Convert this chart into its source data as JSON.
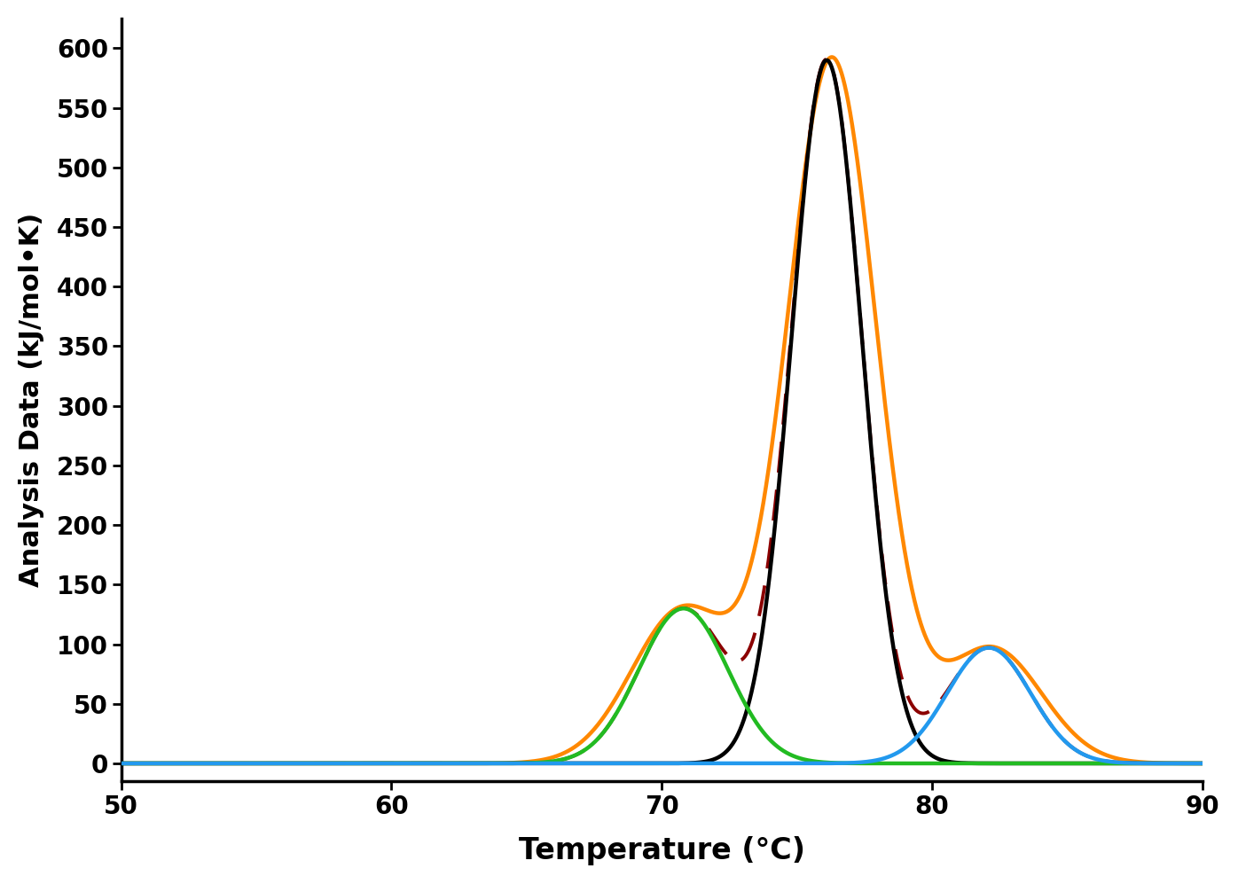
{
  "xlim": [
    50,
    90
  ],
  "ylim": [
    -15,
    625
  ],
  "xlabel": "Temperature (°C)",
  "ylabel": "Analysis Data (kJ/mol•K)",
  "xticks": [
    50,
    60,
    70,
    80,
    90
  ],
  "yticks": [
    0,
    50,
    100,
    150,
    200,
    250,
    300,
    350,
    400,
    450,
    500,
    550,
    600
  ],
  "gauss1": {
    "amp": 590,
    "mu": 76.1,
    "sigma": 1.3
  },
  "gauss2": {
    "amp": 130,
    "mu": 70.8,
    "sigma": 1.65
  },
  "gauss3": {
    "amp": 97,
    "mu": 82.1,
    "sigma": 1.55
  },
  "data_gauss1": {
    "amp": 590,
    "mu": 76.3,
    "sigma": 1.65
  },
  "data_gauss2": {
    "amp": 130,
    "mu": 70.8,
    "sigma": 1.9
  },
  "data_gauss3": {
    "amp": 97,
    "mu": 82.2,
    "sigma": 1.85
  },
  "gauss1_color": "#000000",
  "gauss2_color": "#22bb22",
  "gauss3_color": "#2299ee",
  "data_color": "#ff8800",
  "fit_color": "#8b0000",
  "linewidth_gauss": 3.2,
  "linewidth_data": 3.2,
  "linewidth_fit": 2.8,
  "xlabel_fontsize": 24,
  "ylabel_fontsize": 22,
  "tick_labelsize": 20,
  "figsize": [
    13.96,
    9.97
  ],
  "dpi": 100
}
